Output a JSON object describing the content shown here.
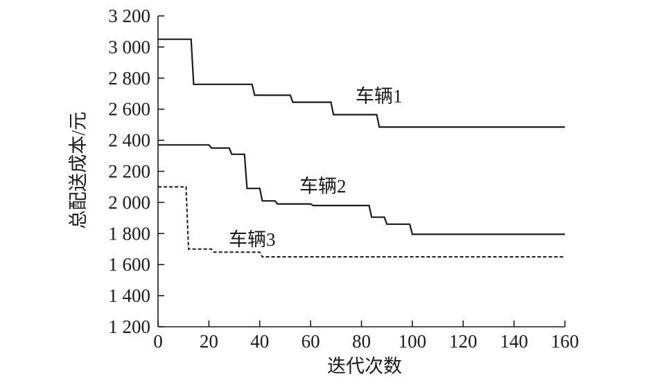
{
  "chart_data": {
    "type": "line",
    "title": "",
    "xlabel": "迭代次数",
    "ylabel": "总配送成本/元",
    "xlim": [
      0,
      160
    ],
    "ylim": [
      1200,
      3200
    ],
    "xticks": [
      0,
      20,
      40,
      60,
      80,
      100,
      120,
      140,
      160
    ],
    "yticks": [
      1200,
      1400,
      1600,
      1800,
      2000,
      2200,
      2400,
      2600,
      2800,
      3000,
      3200
    ],
    "xtick_labels": [
      "0",
      "20",
      "40",
      "60",
      "80",
      "100",
      "120",
      "140",
      "160"
    ],
    "ytick_labels": [
      "1 200",
      "1 400",
      "1 600",
      "1 800",
      "2 000",
      "2 200",
      "2 400",
      "2 600",
      "2 800",
      "3 000",
      "3 200"
    ],
    "grid": false,
    "legend": "inline labels",
    "series": [
      {
        "name": "车辆1",
        "style": "solid",
        "color": "#1a1a1a",
        "points": [
          [
            0,
            3050
          ],
          [
            13,
            3050
          ],
          [
            14,
            2760
          ],
          [
            37,
            2760
          ],
          [
            38,
            2690
          ],
          [
            52,
            2690
          ],
          [
            53,
            2645
          ],
          [
            68,
            2645
          ],
          [
            69,
            2565
          ],
          [
            86,
            2565
          ],
          [
            87,
            2485
          ],
          [
            160,
            2485
          ]
        ]
      },
      {
        "name": "车辆2",
        "style": "solid",
        "color": "#1a1a1a",
        "points": [
          [
            0,
            2370
          ],
          [
            20,
            2370
          ],
          [
            21,
            2350
          ],
          [
            28,
            2350
          ],
          [
            29,
            2310
          ],
          [
            34,
            2310
          ],
          [
            35,
            2090
          ],
          [
            40,
            2090
          ],
          [
            41,
            2010
          ],
          [
            46,
            2010
          ],
          [
            47,
            1990
          ],
          [
            60,
            1990
          ],
          [
            61,
            1980
          ],
          [
            83,
            1980
          ],
          [
            84,
            1905
          ],
          [
            89,
            1905
          ],
          [
            90,
            1860
          ],
          [
            99,
            1860
          ],
          [
            100,
            1795
          ],
          [
            160,
            1795
          ]
        ]
      },
      {
        "name": "车辆3",
        "style": "dashed",
        "color": "#1a1a1a",
        "points": [
          [
            0,
            2100
          ],
          [
            11,
            2100
          ],
          [
            12,
            1700
          ],
          [
            21,
            1700
          ],
          [
            22,
            1680
          ],
          [
            40,
            1680
          ],
          [
            41,
            1650
          ],
          [
            160,
            1650
          ]
        ]
      }
    ]
  }
}
